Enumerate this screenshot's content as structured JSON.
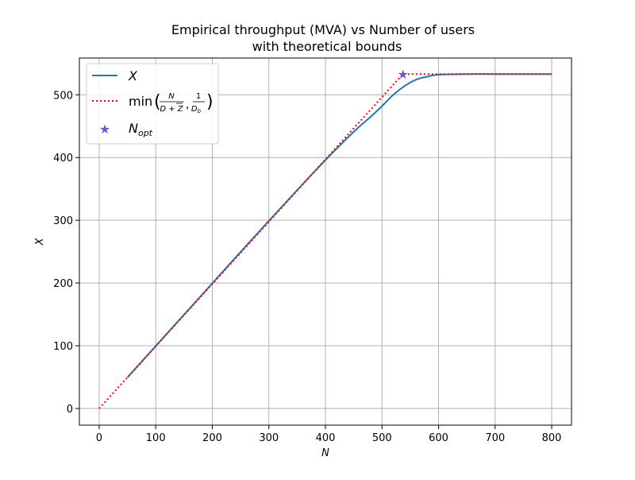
{
  "chart_data": {
    "type": "line",
    "title_line1": "Empirical throughput (MVA) vs Number of users",
    "title_line2": "with theoretical bounds",
    "xlabel": "N",
    "ylabel": "X",
    "xlim": [
      -35,
      835
    ],
    "ylim": [
      -26.6,
      558.6
    ],
    "xticks": [
      0,
      100,
      200,
      300,
      400,
      500,
      600,
      700,
      800
    ],
    "yticks": [
      0,
      100,
      200,
      300,
      400,
      500
    ],
    "grid": true,
    "legend_position": "top-left",
    "legend": {
      "x_label": "X",
      "bound_label_prefix": "min",
      "bound_frac1_num": "N",
      "bound_frac1_den": "D + Z",
      "bound_frac2_num": "1",
      "bound_frac2_den_main": "D",
      "bound_frac2_den_sub": "b",
      "nopt_main": "N",
      "nopt_sub": "opt"
    },
    "colors": {
      "empirical": "#1f77b4",
      "bound": "#ff0000",
      "nopt": "#6a5acd",
      "grid": "#b0b0b0"
    },
    "series": [
      {
        "name": "X",
        "style": "solid",
        "x": [
          50,
          100,
          150,
          200,
          250,
          300,
          350,
          400,
          450,
          480,
          500,
          520,
          540,
          560,
          580,
          600,
          650,
          700,
          750,
          800
        ],
        "y": [
          49.5,
          99.5,
          149.5,
          199.5,
          249.5,
          299,
          348,
          396,
          441,
          465,
          482,
          500,
          514,
          524,
          529,
          532,
          533,
          533,
          533,
          533
        ]
      },
      {
        "name": "bound",
        "style": "dotted",
        "x": [
          0,
          537,
          800
        ],
        "y": [
          0,
          533,
          533
        ]
      }
    ],
    "nopt_point": {
      "name": "N_opt",
      "x": 537,
      "y": 533
    }
  }
}
